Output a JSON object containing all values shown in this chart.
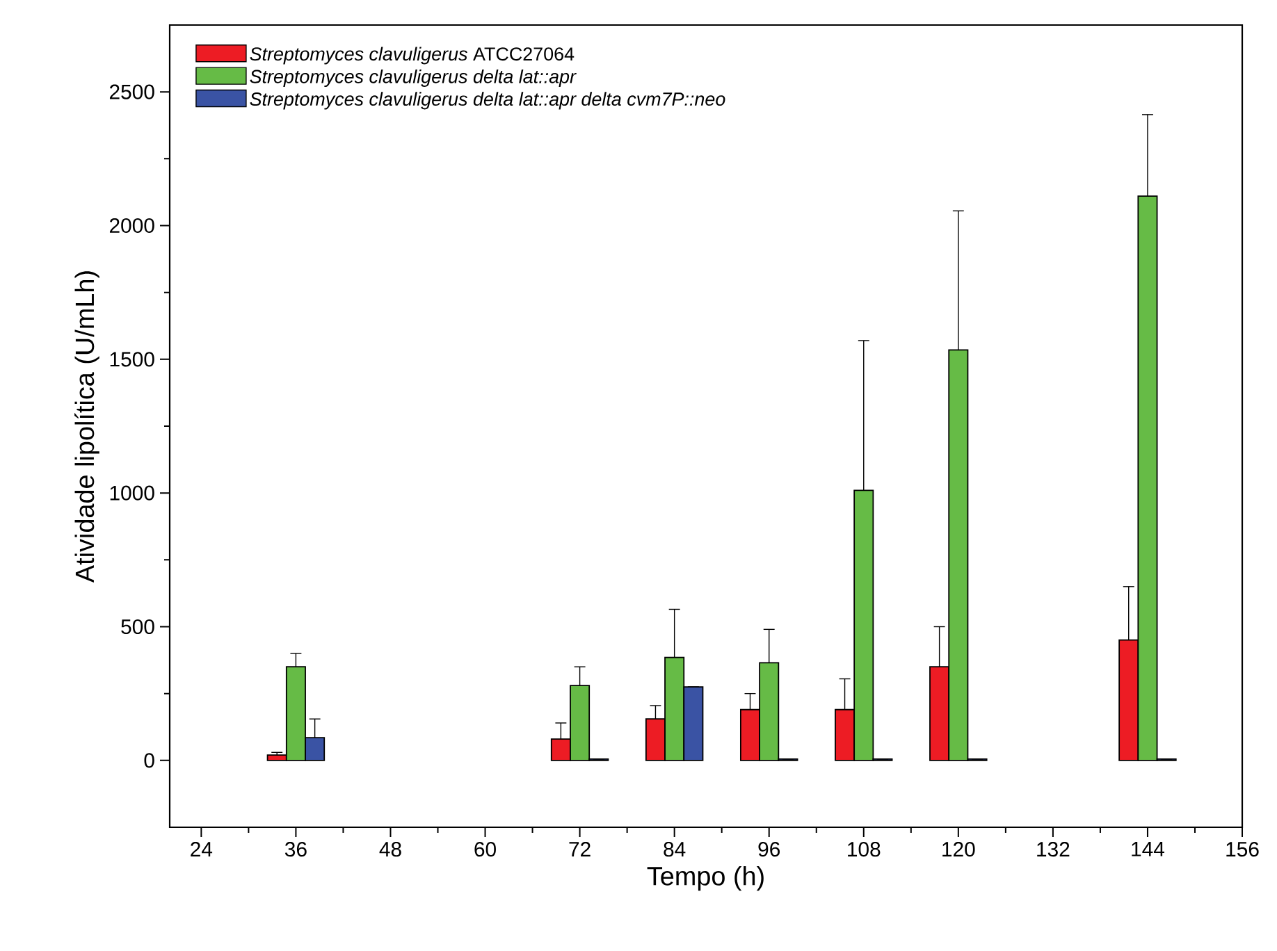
{
  "chart_data": {
    "type": "bar",
    "xlabel": "Tempo (h)",
    "ylabel": "Atividade lipolítica (U/mLh)",
    "x": [
      36,
      72,
      84,
      96,
      108,
      120,
      144
    ],
    "series": [
      {
        "name": "*Streptomyces clavuligerus* ATCC27064",
        "color": "#ed1c24",
        "values": [
          20,
          80,
          155,
          190,
          190,
          350,
          450
        ],
        "errors": [
          10,
          60,
          50,
          60,
          115,
          150,
          200
        ]
      },
      {
        "name": "*Streptomyces clavuligerus delta lat::apr*",
        "color": "#66bb46",
        "values": [
          350,
          280,
          385,
          365,
          1010,
          1535,
          2110
        ],
        "errors": [
          50,
          70,
          180,
          125,
          560,
          520,
          305
        ]
      },
      {
        "name": "*Streptomyces clavuligerus delta lat::apr delta cvm7P::neo*",
        "color": "#3a53a4",
        "values": [
          85,
          5,
          275,
          5,
          5,
          5,
          5
        ],
        "errors": [
          70,
          null,
          null,
          null,
          null,
          null,
          null
        ]
      }
    ],
    "xlim": [
      20,
      156
    ],
    "xticks": [
      24,
      36,
      48,
      60,
      72,
      84,
      96,
      108,
      120,
      132,
      144,
      156
    ],
    "ylim": [
      -250,
      2750
    ],
    "yticks": [
      0,
      500,
      1000,
      1500,
      2000,
      2500
    ],
    "grid": false,
    "legend": "top left"
  }
}
